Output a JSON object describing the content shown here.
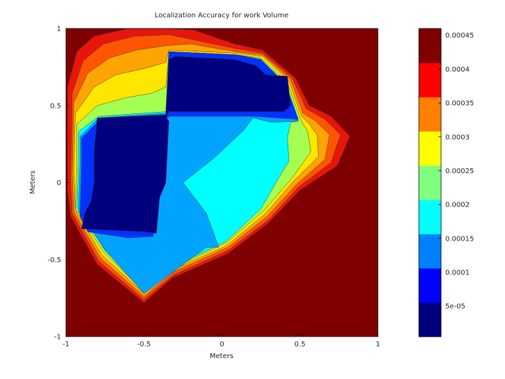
{
  "chart_data": {
    "type": "contour",
    "title": "Localization Accuracy for work Volume",
    "xlabel": "Meters",
    "ylabel": "Meters",
    "xlim": [
      -1,
      1
    ],
    "ylim": [
      -1,
      1
    ],
    "x_ticks": [
      "-1",
      "-0.5",
      "0",
      "0.5",
      "1"
    ],
    "x_tick_values": [
      -1,
      -0.5,
      0,
      0.5,
      1
    ],
    "y_ticks": [
      "-1",
      "-0.5",
      "0",
      "0.5",
      "1"
    ],
    "y_tick_values": [
      -1,
      -0.5,
      0,
      0.5,
      1
    ],
    "grid": false,
    "colormap": "jet",
    "colorbar": {
      "range": [
        5e-06,
        0.00046
      ],
      "tick_labels": [
        "5e-05",
        "0.0001",
        "0.00015",
        "0.0002",
        "0.00025",
        "0.0003",
        "0.00035",
        "0.0004",
        "0.00045"
      ],
      "tick_values": [
        5e-05,
        0.0001,
        0.00015,
        0.0002,
        0.00025,
        0.0003,
        0.00035,
        0.0004,
        0.00045
      ],
      "colors": [
        "#00007f",
        "#0000ff",
        "#0080ff",
        "#00ffff",
        "#80ff80",
        "#ffff00",
        "#ff8000",
        "#ff0000",
        "#7f0000"
      ]
    },
    "background_level": 0.00046,
    "regions": [
      {
        "level": 0.00042,
        "color": "#e8150b",
        "points": [
          [
            -0.99,
            -0.05
          ],
          [
            -0.99,
            0.62
          ],
          [
            -0.93,
            0.85
          ],
          [
            -0.82,
            0.95
          ],
          [
            -0.6,
            1.0
          ],
          [
            -0.36,
            1.0
          ],
          [
            -0.18,
            0.99
          ],
          [
            0.08,
            0.9
          ],
          [
            0.26,
            0.86
          ],
          [
            0.47,
            0.68
          ],
          [
            0.56,
            0.5
          ],
          [
            0.7,
            0.43
          ],
          [
            0.82,
            0.3
          ],
          [
            0.74,
            0.11
          ],
          [
            0.5,
            -0.05
          ],
          [
            0.3,
            -0.26
          ],
          [
            0.04,
            -0.46
          ],
          [
            -0.32,
            -0.62
          ],
          [
            -0.5,
            -0.78
          ],
          [
            -0.8,
            -0.53
          ],
          [
            -0.97,
            -0.22
          ]
        ]
      },
      {
        "level": 0.0004,
        "color": "#ff5500",
        "points": [
          [
            -0.97,
            0.0
          ],
          [
            -0.96,
            0.58
          ],
          [
            -0.89,
            0.79
          ],
          [
            -0.76,
            0.9
          ],
          [
            -0.56,
            0.95
          ],
          [
            -0.34,
            0.96
          ],
          [
            -0.15,
            0.92
          ],
          [
            0.09,
            0.87
          ],
          [
            0.26,
            0.84
          ],
          [
            0.45,
            0.68
          ],
          [
            0.54,
            0.48
          ],
          [
            0.66,
            0.41
          ],
          [
            0.76,
            0.31
          ],
          [
            0.7,
            0.13
          ],
          [
            0.49,
            -0.03
          ],
          [
            0.3,
            -0.24
          ],
          [
            0.04,
            -0.44
          ],
          [
            -0.31,
            -0.6
          ],
          [
            -0.5,
            -0.76
          ],
          [
            -0.79,
            -0.51
          ],
          [
            -0.96,
            -0.2
          ]
        ]
      },
      {
        "level": 0.00035,
        "color": "#ffa400",
        "points": [
          [
            -0.96,
            0.05
          ],
          [
            -0.95,
            0.52
          ],
          [
            -0.86,
            0.71
          ],
          [
            -0.72,
            0.81
          ],
          [
            -0.55,
            0.86
          ],
          [
            -0.35,
            0.89
          ],
          [
            -0.2,
            0.9
          ],
          [
            0.09,
            0.85
          ],
          [
            0.26,
            0.83
          ],
          [
            0.44,
            0.67
          ],
          [
            0.52,
            0.45
          ],
          [
            0.6,
            0.4
          ],
          [
            0.69,
            0.31
          ],
          [
            0.66,
            0.15
          ],
          [
            0.48,
            -0.01
          ],
          [
            0.29,
            -0.22
          ],
          [
            0.04,
            -0.42
          ],
          [
            -0.31,
            -0.58
          ],
          [
            -0.5,
            -0.74
          ],
          [
            -0.78,
            -0.49
          ],
          [
            -0.95,
            -0.19
          ]
        ]
      },
      {
        "level": 0.0003,
        "color": "#ffe600",
        "points": [
          [
            -0.95,
            0.08
          ],
          [
            -0.94,
            0.45
          ],
          [
            -0.82,
            0.62
          ],
          [
            -0.68,
            0.7
          ],
          [
            -0.5,
            0.74
          ],
          [
            -0.36,
            0.78
          ],
          [
            -0.34,
            0.86
          ],
          [
            0.09,
            0.84
          ],
          [
            0.26,
            0.82
          ],
          [
            0.43,
            0.66
          ],
          [
            0.51,
            0.43
          ],
          [
            0.56,
            0.38
          ],
          [
            0.61,
            0.31
          ],
          [
            0.62,
            0.17
          ],
          [
            0.46,
            0.01
          ],
          [
            0.28,
            -0.2
          ],
          [
            0.03,
            -0.41
          ],
          [
            -0.3,
            -0.56
          ],
          [
            -0.5,
            -0.72
          ],
          [
            -0.77,
            -0.47
          ],
          [
            -0.94,
            -0.18
          ]
        ]
      },
      {
        "level": 0.00025,
        "color": "#a5ff52",
        "points": [
          [
            -0.93,
            0.1
          ],
          [
            -0.93,
            0.38
          ],
          [
            -0.8,
            0.5
          ],
          [
            -0.62,
            0.55
          ],
          [
            -0.45,
            0.58
          ],
          [
            -0.36,
            0.62
          ],
          [
            -0.34,
            0.85
          ],
          [
            0.09,
            0.83
          ],
          [
            0.25,
            0.81
          ],
          [
            0.42,
            0.65
          ],
          [
            0.5,
            0.42
          ],
          [
            0.52,
            0.38
          ],
          [
            0.55,
            0.33
          ],
          [
            0.57,
            0.2
          ],
          [
            0.45,
            0.03
          ],
          [
            0.27,
            -0.18
          ],
          [
            0.03,
            -0.39
          ],
          [
            -0.3,
            -0.55
          ],
          [
            -0.5,
            -0.71
          ],
          [
            -0.76,
            -0.45
          ],
          [
            -0.94,
            -0.17
          ]
        ]
      },
      {
        "level": 0.0002,
        "color": "#00ffff",
        "points": [
          [
            -0.92,
            0.11
          ],
          [
            -0.92,
            0.33
          ],
          [
            -0.79,
            0.43
          ],
          [
            -0.36,
            0.46
          ],
          [
            -0.34,
            0.85
          ],
          [
            0.09,
            0.83
          ],
          [
            0.25,
            0.8
          ],
          [
            0.41,
            0.64
          ],
          [
            0.49,
            0.4
          ],
          [
            0.44,
            0.39
          ],
          [
            0.42,
            0.29
          ],
          [
            0.43,
            0.14
          ],
          [
            0.37,
            0.04
          ],
          [
            0.25,
            -0.17
          ],
          [
            0.03,
            -0.38
          ],
          [
            -0.3,
            -0.54
          ],
          [
            -0.5,
            -0.7
          ],
          [
            -0.75,
            -0.44
          ],
          [
            -0.93,
            -0.16
          ]
        ]
      },
      {
        "level": 0.00015,
        "color": "#00a4ff",
        "points": [
          [
            -0.91,
            0.12
          ],
          [
            -0.91,
            0.3
          ],
          [
            -0.79,
            0.42
          ],
          [
            -0.36,
            0.45
          ],
          [
            -0.34,
            0.85
          ],
          [
            0.09,
            0.83
          ],
          [
            0.25,
            0.8
          ],
          [
            0.41,
            0.64
          ],
          [
            0.49,
            0.4
          ],
          [
            0.32,
            0.39
          ],
          [
            0.2,
            0.42
          ],
          [
            0.14,
            0.34
          ],
          [
            -0.05,
            0.16
          ],
          [
            -0.25,
            0.0
          ],
          [
            -0.1,
            -0.2
          ],
          [
            -0.02,
            -0.42
          ],
          [
            -0.1,
            -0.42
          ],
          [
            -0.3,
            -0.57
          ],
          [
            -0.5,
            -0.72
          ],
          [
            -0.74,
            -0.45
          ],
          [
            -0.92,
            -0.19
          ]
        ]
      },
      {
        "level": 0.0001,
        "color": "#0032ff",
        "points": [
          [
            -0.9,
            0.13
          ],
          [
            -0.9,
            0.29
          ],
          [
            -0.78,
            0.41
          ],
          [
            -0.36,
            0.44
          ],
          [
            -0.34,
            0.85
          ],
          [
            0.09,
            0.83
          ],
          [
            0.25,
            0.8
          ],
          [
            0.41,
            0.64
          ],
          [
            0.49,
            0.41
          ],
          [
            0.2,
            0.43
          ],
          [
            -0.34,
            0.43
          ],
          [
            -0.36,
            0.4
          ],
          [
            -0.36,
            0.0
          ],
          [
            -0.42,
            -0.15
          ],
          [
            -0.44,
            -0.35
          ],
          [
            -0.6,
            -0.36
          ],
          [
            -0.86,
            -0.32
          ],
          [
            -0.91,
            -0.22
          ]
        ]
      },
      {
        "level": 5e-05,
        "color": "#00007f",
        "points": [
          [
            -0.8,
            0.42
          ],
          [
            -0.36,
            0.44
          ],
          [
            -0.34,
            0.8
          ],
          [
            -0.3,
            0.82
          ],
          [
            0.08,
            0.8
          ],
          [
            0.22,
            0.76
          ],
          [
            0.28,
            0.7
          ],
          [
            0.42,
            0.69
          ],
          [
            0.44,
            0.5
          ],
          [
            0.4,
            0.46
          ],
          [
            -0.34,
            0.46
          ],
          [
            -0.36,
            0.42
          ],
          [
            -0.36,
            0.42
          ],
          [
            -0.36,
            0.42
          ],
          [
            -0.34,
            0.4
          ],
          [
            -0.36,
            0.0
          ],
          [
            -0.4,
            -0.1
          ],
          [
            -0.42,
            -0.33
          ],
          [
            -0.5,
            -0.32
          ],
          [
            -0.9,
            -0.3
          ],
          [
            -0.88,
            -0.2
          ],
          [
            -0.84,
            -0.12
          ],
          [
            -0.82,
            0.0
          ],
          [
            -0.82,
            0.2
          ]
        ]
      }
    ]
  }
}
